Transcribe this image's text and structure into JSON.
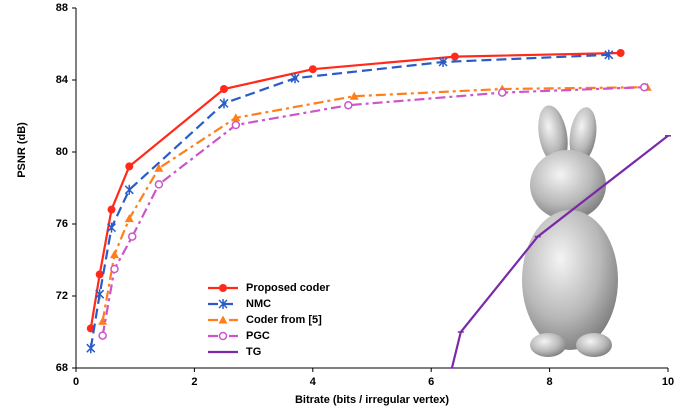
{
  "chart_data": {
    "type": "line",
    "xlabel": "Bitrate (bits / irregular vertex)",
    "ylabel": "PSNR (dB)",
    "xlim": [
      0,
      10
    ],
    "xticks": [
      0,
      2,
      4,
      6,
      8,
      10
    ],
    "ylim": [
      68,
      88
    ],
    "yticks": [
      68,
      72,
      76,
      80,
      84,
      88
    ],
    "legend": "lower left",
    "series": [
      {
        "name": "Proposed coder",
        "color": "#ff2a1a",
        "marker": "circle",
        "dash": "solid",
        "x": [
          0.25,
          0.4,
          0.6,
          0.9,
          2.5,
          4.0,
          6.4,
          9.2
        ],
        "values": [
          70.2,
          73.2,
          76.8,
          79.2,
          83.5,
          84.6,
          85.3,
          85.5
        ]
      },
      {
        "name": "NMC",
        "color": "#2a5cc8",
        "marker": "star",
        "dash": "dashed",
        "x": [
          0.25,
          0.4,
          0.6,
          0.9,
          2.5,
          3.7,
          6.2,
          9.0
        ],
        "values": [
          69.1,
          72.1,
          75.8,
          77.9,
          82.7,
          84.1,
          85.0,
          85.4
        ]
      },
      {
        "name": "Coder from [5]",
        "color": "#ff7f1a",
        "marker": "triangle",
        "dash": "dashdot",
        "x": [
          0.45,
          0.65,
          0.9,
          1.4,
          2.7,
          4.7,
          7.2,
          9.65
        ],
        "values": [
          70.6,
          74.3,
          76.3,
          79.1,
          81.9,
          83.1,
          83.5,
          83.6
        ]
      },
      {
        "name": "PGC",
        "color": "#cc55cc",
        "marker": "open-circle",
        "dash": "dashdot",
        "x": [
          0.45,
          0.65,
          0.95,
          1.4,
          2.7,
          4.6,
          7.2,
          9.6
        ],
        "values": [
          69.8,
          73.5,
          75.3,
          78.2,
          81.5,
          82.6,
          83.3,
          83.6
        ]
      },
      {
        "name": "TG",
        "color": "#7a2aa8",
        "marker": "tick",
        "dash": "solid",
        "x": [
          6.35,
          6.5,
          7.8,
          10
        ],
        "values": [
          68,
          70.0,
          75.3,
          80.9
        ]
      }
    ]
  }
}
